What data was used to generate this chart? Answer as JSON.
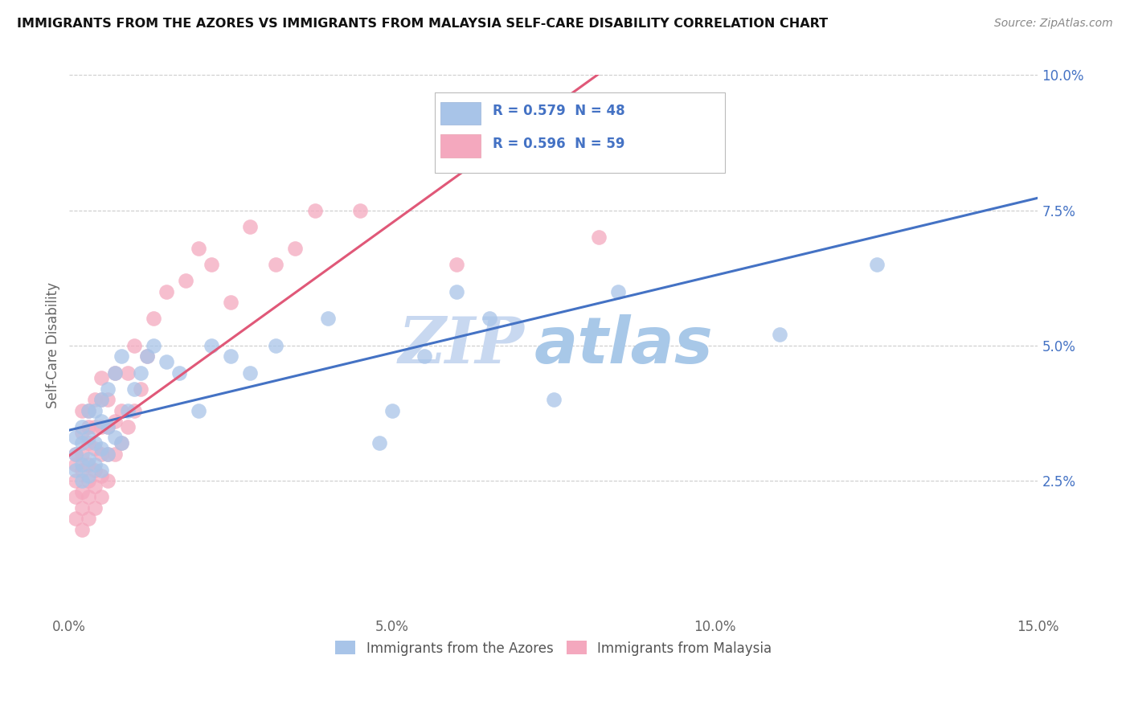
{
  "title": "IMMIGRANTS FROM THE AZORES VS IMMIGRANTS FROM MALAYSIA SELF-CARE DISABILITY CORRELATION CHART",
  "source": "Source: ZipAtlas.com",
  "ylabel": "Self-Care Disability",
  "xlim": [
    0.0,
    0.15
  ],
  "ylim": [
    0.0,
    0.1
  ],
  "xticks": [
    0.0,
    0.05,
    0.1,
    0.15
  ],
  "yticks": [
    0.025,
    0.05,
    0.075,
    0.1
  ],
  "xtick_labels": [
    "0.0%",
    "5.0%",
    "10.0%",
    "15.0%"
  ],
  "ytick_labels": [
    "2.5%",
    "5.0%",
    "7.5%",
    "10.0%"
  ],
  "legend_labels": [
    "Immigrants from the Azores",
    "Immigrants from Malaysia"
  ],
  "r_azores": 0.579,
  "n_azores": 48,
  "r_malaysia": 0.596,
  "n_malaysia": 59,
  "color_azores": "#a8c4e8",
  "color_malaysia": "#f4a8be",
  "trend_color_azores": "#4472c4",
  "trend_color_malaysia": "#e05878",
  "watermark_zip": "ZIP",
  "watermark_atlas": "atlas",
  "watermark_color_zip": "#c8d8f0",
  "watermark_color_atlas": "#a8c8e8",
  "azores_x": [
    0.001,
    0.001,
    0.001,
    0.002,
    0.002,
    0.002,
    0.002,
    0.003,
    0.003,
    0.003,
    0.003,
    0.004,
    0.004,
    0.004,
    0.005,
    0.005,
    0.005,
    0.005,
    0.006,
    0.006,
    0.006,
    0.007,
    0.007,
    0.008,
    0.008,
    0.009,
    0.01,
    0.011,
    0.012,
    0.013,
    0.015,
    0.017,
    0.02,
    0.022,
    0.025,
    0.028,
    0.032,
    0.04,
    0.048,
    0.05,
    0.055,
    0.06,
    0.065,
    0.075,
    0.085,
    0.095,
    0.11,
    0.125
  ],
  "azores_y": [
    0.027,
    0.03,
    0.033,
    0.025,
    0.028,
    0.032,
    0.035,
    0.026,
    0.029,
    0.033,
    0.038,
    0.028,
    0.032,
    0.038,
    0.027,
    0.031,
    0.036,
    0.04,
    0.03,
    0.035,
    0.042,
    0.033,
    0.045,
    0.032,
    0.048,
    0.038,
    0.042,
    0.045,
    0.048,
    0.05,
    0.047,
    0.045,
    0.038,
    0.05,
    0.048,
    0.045,
    0.05,
    0.055,
    0.032,
    0.038,
    0.048,
    0.06,
    0.055,
    0.04,
    0.06,
    0.088,
    0.052,
    0.065
  ],
  "malaysia_x": [
    0.001,
    0.001,
    0.001,
    0.001,
    0.001,
    0.002,
    0.002,
    0.002,
    0.002,
    0.002,
    0.002,
    0.002,
    0.003,
    0.003,
    0.003,
    0.003,
    0.003,
    0.003,
    0.003,
    0.004,
    0.004,
    0.004,
    0.004,
    0.004,
    0.004,
    0.005,
    0.005,
    0.005,
    0.005,
    0.005,
    0.005,
    0.006,
    0.006,
    0.006,
    0.006,
    0.007,
    0.007,
    0.007,
    0.008,
    0.008,
    0.009,
    0.009,
    0.01,
    0.01,
    0.011,
    0.012,
    0.013,
    0.015,
    0.018,
    0.02,
    0.022,
    0.025,
    0.028,
    0.032,
    0.035,
    0.038,
    0.045,
    0.06,
    0.082
  ],
  "malaysia_y": [
    0.018,
    0.022,
    0.025,
    0.028,
    0.03,
    0.016,
    0.02,
    0.023,
    0.027,
    0.03,
    0.034,
    0.038,
    0.018,
    0.022,
    0.025,
    0.028,
    0.032,
    0.035,
    0.038,
    0.02,
    0.024,
    0.027,
    0.031,
    0.035,
    0.04,
    0.022,
    0.026,
    0.03,
    0.035,
    0.04,
    0.044,
    0.025,
    0.03,
    0.035,
    0.04,
    0.03,
    0.036,
    0.045,
    0.032,
    0.038,
    0.035,
    0.045,
    0.038,
    0.05,
    0.042,
    0.048,
    0.055,
    0.06,
    0.062,
    0.068,
    0.065,
    0.058,
    0.072,
    0.065,
    0.068,
    0.075,
    0.075,
    0.065,
    0.07
  ]
}
